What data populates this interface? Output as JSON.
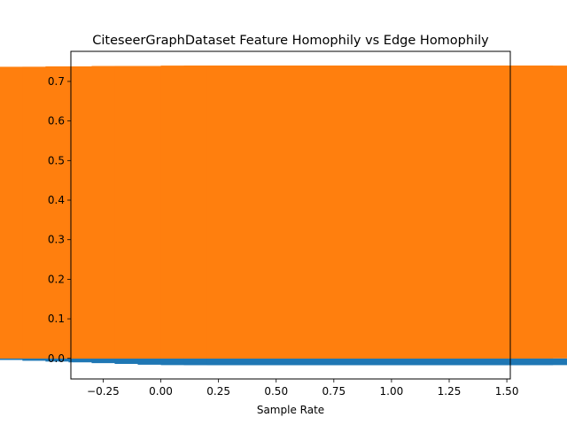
{
  "chart_data": {
    "type": "bar",
    "title": "CiteseerGraphDataset Feature Homophily vs Edge Homophily",
    "xlabel": "Sample Rate",
    "ylabel": "",
    "xlim": [
      -0.39,
      1.515
    ],
    "ylim": [
      -0.052,
      0.776
    ],
    "xticks": [
      -0.25,
      0.0,
      0.25,
      0.5,
      0.75,
      1.0,
      1.25,
      1.5
    ],
    "xtick_labels": [
      "−0.25",
      "0.00",
      "0.25",
      "0.50",
      "0.75",
      "1.00",
      "1.25",
      "1.50"
    ],
    "yticks": [
      0.0,
      0.1,
      0.2,
      0.3,
      0.4,
      0.5,
      0.6,
      0.7
    ],
    "ytick_labels": [
      "0.0",
      "0.1",
      "0.2",
      "0.3",
      "0.4",
      "0.5",
      "0.6",
      "0.7"
    ],
    "grid": false,
    "bar_width": 1.6,
    "series": [
      {
        "color": "#1f77b4",
        "x": [
          0.0,
          0.1,
          0.2,
          0.3,
          0.4,
          0.5,
          0.6,
          0.7,
          0.8,
          0.9,
          1.0
        ],
        "values": [
          -0.002,
          -0.004,
          -0.006,
          -0.008,
          -0.01,
          -0.012,
          -0.014,
          -0.016,
          -0.017,
          -0.017,
          -0.017
        ]
      },
      {
        "color": "#ff7f0e",
        "x": [
          0.0,
          0.1,
          0.2,
          0.3,
          0.4,
          0.5,
          0.6,
          0.7,
          0.8,
          0.9,
          1.0
        ],
        "values": [
          0.736,
          0.737,
          0.737,
          0.738,
          0.738,
          0.739,
          0.739,
          0.739,
          0.74,
          0.74,
          0.74
        ]
      }
    ]
  }
}
